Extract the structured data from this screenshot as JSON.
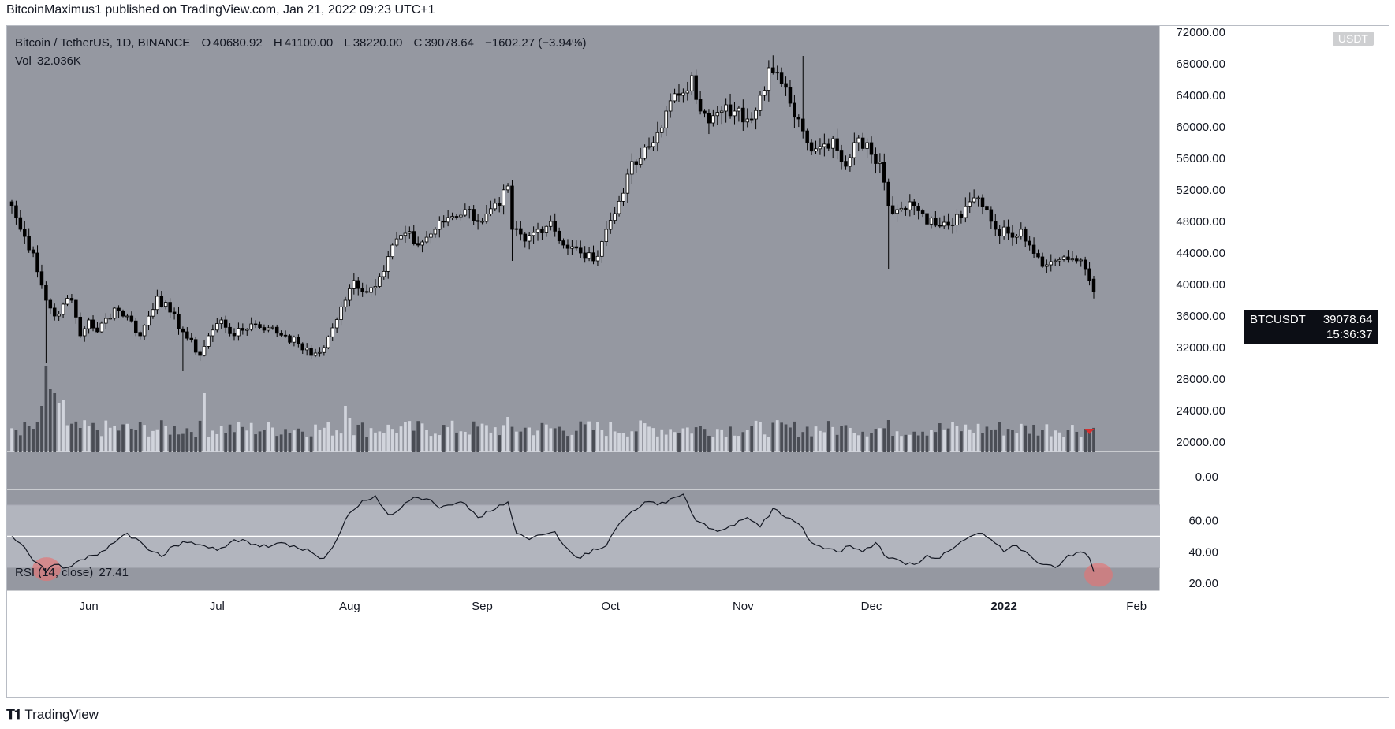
{
  "header": {
    "author": "BitcoinMaximus1",
    "published_text": "published on TradingView.com, Jan 21, 2022 09:23 UTC+1"
  },
  "legend": {
    "symbol": "Bitcoin / TetherUS, 1D, BINANCE",
    "open_label": "O",
    "open": "40680.92",
    "high_label": "H",
    "high": "41100.00",
    "low_label": "L",
    "low": "38220.00",
    "close_label": "C",
    "close": "39078.64",
    "change": "−1602.27 (−3.94%)",
    "vol_label": "Vol",
    "vol": "32.036K",
    "rsi_label": "RSI (14, close)",
    "rsi": "27.41"
  },
  "currency_badge": "USDT",
  "price_tag": {
    "symbol": "BTCUSDT",
    "price": "39078.64",
    "countdown": "15:36:37"
  },
  "brand": "TradingView",
  "colors": {
    "chart_bg": "#9598a1",
    "rsi_band": "#b2b5be",
    "up_candle": "#ffffff",
    "down_candle": "#000000",
    "rsi_line": "#131722",
    "oversold_marker": "#e57373",
    "sell_arrow": "#d32f2f",
    "volume_up": "#d1d4dc",
    "volume_down": "#4a4d55"
  },
  "chart_data": [
    {
      "type": "candlestick",
      "pane": "price",
      "y_axis_ticks": [
        "72000.00",
        "68000.00",
        "64000.00",
        "60000.00",
        "56000.00",
        "52000.00",
        "48000.00",
        "44000.00",
        "40000.00",
        "36000.00",
        "32000.00",
        "28000.00",
        "24000.00",
        "20000.00"
      ],
      "ylim": [
        20000,
        72000
      ],
      "x_axis_ticks": [
        "Jun",
        "Jul",
        "Aug",
        "Sep",
        "Oct",
        "Nov",
        "Dec",
        "2022",
        "Feb"
      ],
      "start_date": "2021-05-14",
      "anchors": [
        [
          0,
          50000
        ],
        [
          2,
          47000
        ],
        [
          5,
          44000
        ],
        [
          8,
          38000
        ],
        [
          10,
          36000
        ],
        [
          12,
          37500
        ],
        [
          14,
          38000
        ],
        [
          16,
          33500
        ],
        [
          18,
          35500
        ],
        [
          20,
          34000
        ],
        [
          24,
          37000
        ],
        [
          27,
          36000
        ],
        [
          30,
          33500
        ],
        [
          34,
          38500
        ],
        [
          37,
          36500
        ],
        [
          40,
          34000
        ],
        [
          44,
          31000
        ],
        [
          46,
          33500
        ],
        [
          49,
          35500
        ],
        [
          52,
          33500
        ],
        [
          56,
          35000
        ],
        [
          60,
          34500
        ],
        [
          64,
          33500
        ],
        [
          67,
          32500
        ],
        [
          70,
          31000
        ],
        [
          73,
          32000
        ],
        [
          75,
          34500
        ],
        [
          78,
          38000
        ],
        [
          80,
          40500
        ],
        [
          83,
          39000
        ],
        [
          86,
          41000
        ],
        [
          89,
          45000
        ],
        [
          92,
          46500
        ],
        [
          95,
          45000
        ],
        [
          99,
          47000
        ],
        [
          102,
          48500
        ],
        [
          106,
          49500
        ],
        [
          110,
          48000
        ],
        [
          114,
          50000
        ],
        [
          116,
          52500
        ],
        [
          117,
          47000
        ],
        [
          120,
          45500
        ],
        [
          123,
          47000
        ],
        [
          126,
          48000
        ],
        [
          129,
          45000
        ],
        [
          133,
          44000
        ],
        [
          136,
          43000
        ],
        [
          139,
          47000
        ],
        [
          141,
          49000
        ],
        [
          144,
          54000
        ],
        [
          147,
          56000
        ],
        [
          150,
          58000
        ],
        [
          153,
          62000
        ],
        [
          156,
          64000
        ],
        [
          159,
          66500
        ],
        [
          161,
          62000
        ],
        [
          163,
          60500
        ],
        [
          166,
          62000
        ],
        [
          169,
          62000
        ],
        [
          172,
          61000
        ],
        [
          175,
          64000
        ],
        [
          177,
          67500
        ],
        [
          180,
          65500
        ],
        [
          182,
          63000
        ],
        [
          184,
          61000
        ],
        [
          186,
          58000
        ],
        [
          189,
          57500
        ],
        [
          192,
          58500
        ],
        [
          195,
          55000
        ],
        [
          197,
          58000
        ],
        [
          200,
          58000
        ],
        [
          203,
          55500
        ],
        [
          205,
          50000
        ],
        [
          207,
          49500
        ],
        [
          210,
          50500
        ],
        [
          213,
          49000
        ],
        [
          216,
          47500
        ],
        [
          219,
          47500
        ],
        [
          222,
          48500
        ],
        [
          224,
          50500
        ],
        [
          226,
          51000
        ],
        [
          228,
          49500
        ],
        [
          230,
          47000
        ],
        [
          233,
          46500
        ],
        [
          236,
          47000
        ],
        [
          238,
          45000
        ],
        [
          240,
          43500
        ],
        [
          242,
          42500
        ],
        [
          244,
          43000
        ],
        [
          246,
          43500
        ],
        [
          249,
          43000
        ],
        [
          251,
          42000
        ],
        [
          252,
          40500
        ],
        [
          253,
          39078.64
        ]
      ]
    },
    {
      "type": "bar",
      "pane": "volume",
      "current_volume": "32.036K"
    },
    {
      "type": "line",
      "pane": "rsi",
      "name": "RSI (14, close)",
      "y_axis_ticks": [
        "60.00",
        "40.00",
        "20.00"
      ],
      "ylim": [
        15,
        80
      ],
      "bands": {
        "upper": 70,
        "middle": 50,
        "lower": 30
      },
      "anchors": [
        [
          0,
          50
        ],
        [
          6,
          33
        ],
        [
          8,
          27
        ],
        [
          10,
          32
        ],
        [
          13,
          30
        ],
        [
          16,
          35
        ],
        [
          20,
          38
        ],
        [
          24,
          46
        ],
        [
          27,
          52
        ],
        [
          31,
          44
        ],
        [
          35,
          37
        ],
        [
          38,
          44
        ],
        [
          41,
          46
        ],
        [
          45,
          44
        ],
        [
          48,
          41
        ],
        [
          51,
          46
        ],
        [
          54,
          48
        ],
        [
          57,
          45
        ],
        [
          60,
          43
        ],
        [
          63,
          46
        ],
        [
          66,
          44
        ],
        [
          70,
          40
        ],
        [
          73,
          36
        ],
        [
          76,
          48
        ],
        [
          79,
          65
        ],
        [
          82,
          73
        ],
        [
          85,
          76
        ],
        [
          88,
          64
        ],
        [
          91,
          68
        ],
        [
          94,
          75
        ],
        [
          97,
          74
        ],
        [
          100,
          68
        ],
        [
          103,
          70
        ],
        [
          106,
          71
        ],
        [
          109,
          62
        ],
        [
          112,
          66
        ],
        [
          115,
          70
        ],
        [
          116,
          72
        ],
        [
          118,
          52
        ],
        [
          121,
          48
        ],
        [
          124,
          51
        ],
        [
          127,
          53
        ],
        [
          130,
          42
        ],
        [
          133,
          36
        ],
        [
          136,
          42
        ],
        [
          139,
          44
        ],
        [
          142,
          58
        ],
        [
          145,
          66
        ],
        [
          148,
          72
        ],
        [
          151,
          70
        ],
        [
          154,
          74
        ],
        [
          157,
          77
        ],
        [
          160,
          60
        ],
        [
          163,
          55
        ],
        [
          166,
          54
        ],
        [
          169,
          57
        ],
        [
          172,
          62
        ],
        [
          175,
          56
        ],
        [
          178,
          68
        ],
        [
          181,
          62
        ],
        [
          184,
          58
        ],
        [
          187,
          46
        ],
        [
          190,
          42
        ],
        [
          193,
          40
        ],
        [
          196,
          44
        ],
        [
          199,
          40
        ],
        [
          202,
          46
        ],
        [
          205,
          36
        ],
        [
          208,
          34
        ],
        [
          211,
          32
        ],
        [
          214,
          38
        ],
        [
          217,
          36
        ],
        [
          220,
          42
        ],
        [
          223,
          48
        ],
        [
          226,
          52
        ],
        [
          229,
          48
        ],
        [
          232,
          40
        ],
        [
          235,
          44
        ],
        [
          238,
          38
        ],
        [
          241,
          32
        ],
        [
          244,
          30
        ],
        [
          247,
          38
        ],
        [
          250,
          40
        ],
        [
          252,
          36
        ],
        [
          253,
          27.41
        ]
      ],
      "oversold_markers_at_index": [
        7,
        253
      ]
    }
  ]
}
